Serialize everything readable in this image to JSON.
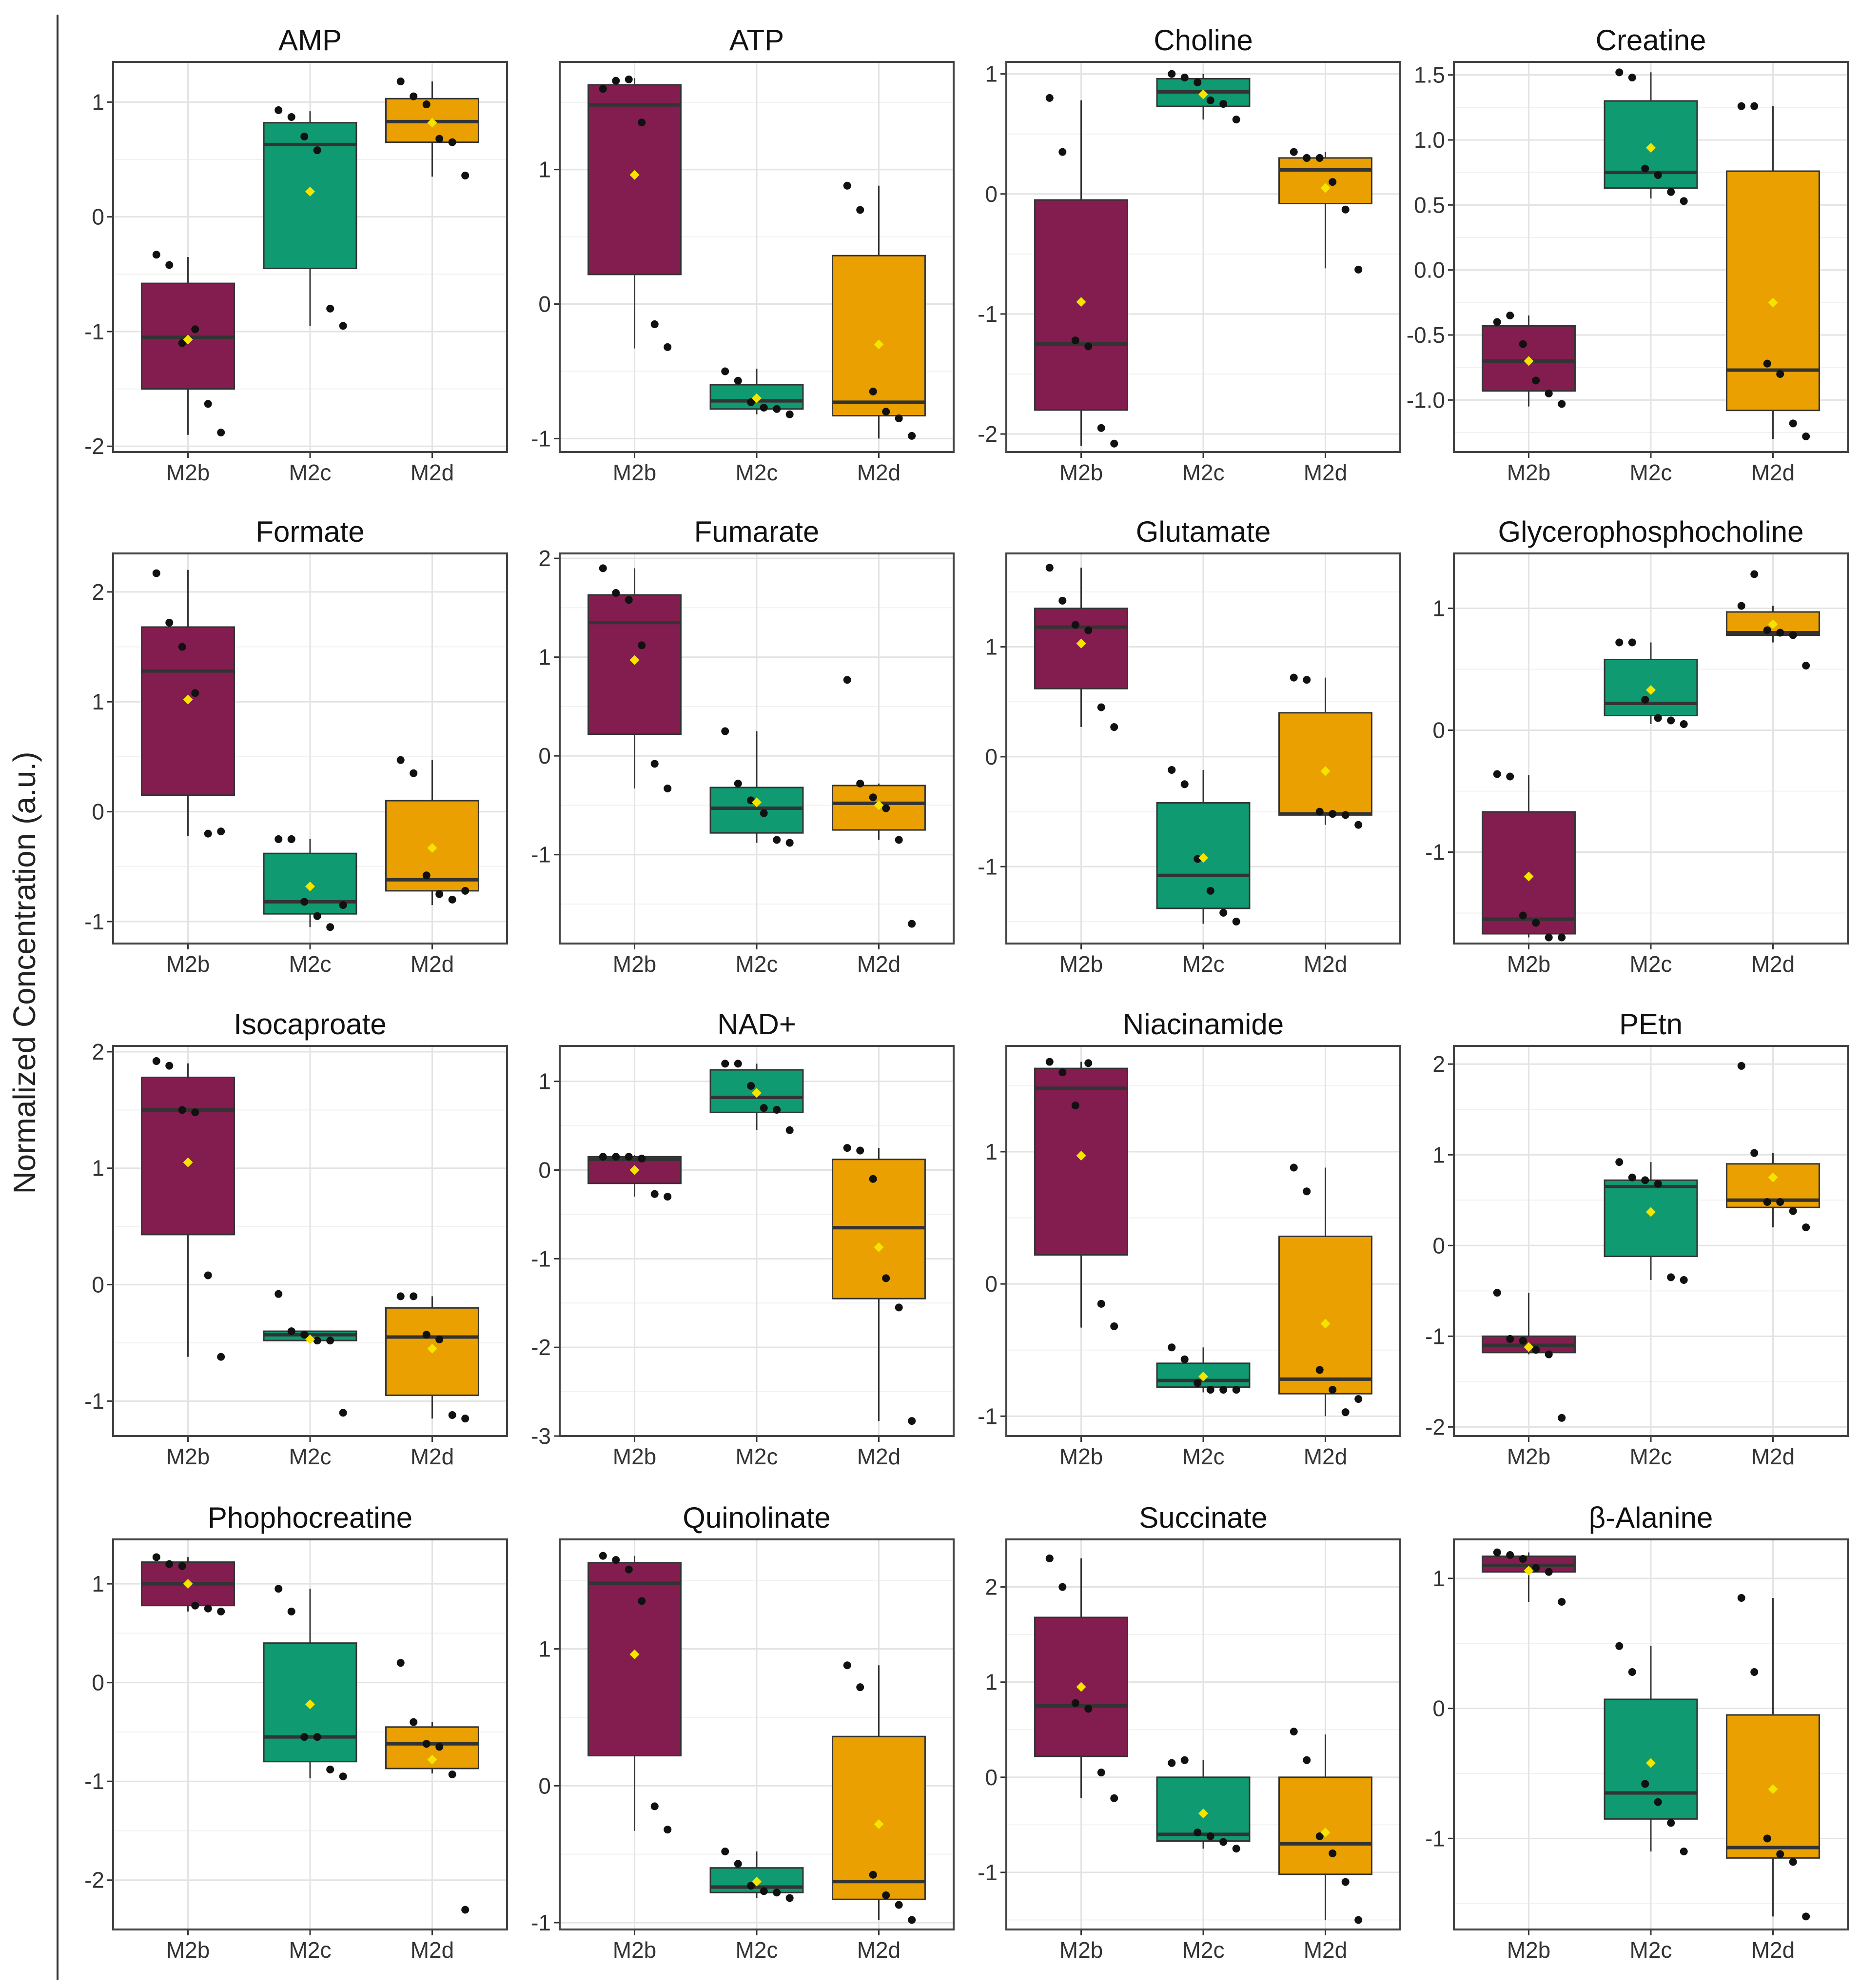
{
  "figure": {
    "ylabel": "Normalized Concentration (a.u.)",
    "colors": {
      "M2b": "#841d4f",
      "M2c": "#0f9a72",
      "M2d": "#e9a000",
      "mean": "#f5e400",
      "point": "#111111",
      "median": "#333333"
    }
  },
  "chart_data": [
    {
      "type": "box",
      "title": "AMP",
      "categories": [
        "M2b",
        "M2c",
        "M2d"
      ],
      "yticks": [
        1,
        0,
        -1,
        -2
      ],
      "ylim": [
        -2.05,
        1.35
      ],
      "boxes": [
        {
          "q1": -1.5,
          "median": -1.05,
          "q3": -0.58,
          "wmin": -1.9,
          "wmax": -0.35,
          "mean": -1.07,
          "points": [
            -0.33,
            -0.42,
            -1.1,
            -0.98,
            -1.63,
            -1.88
          ]
        },
        {
          "q1": -0.45,
          "median": 0.63,
          "q3": 0.82,
          "wmin": -0.95,
          "wmax": 0.92,
          "mean": 0.22,
          "points": [
            0.93,
            0.87,
            0.7,
            0.58,
            -0.8,
            -0.95
          ]
        },
        {
          "q1": 0.65,
          "median": 0.83,
          "q3": 1.03,
          "wmin": 0.35,
          "wmax": 1.18,
          "mean": 0.82,
          "points": [
            1.18,
            1.05,
            0.98,
            0.68,
            0.65,
            0.36
          ]
        }
      ]
    },
    {
      "type": "box",
      "title": "ATP",
      "categories": [
        "M2b",
        "M2c",
        "M2d"
      ],
      "yticks": [
        1,
        0,
        -1
      ],
      "ylim": [
        -1.1,
        1.8
      ],
      "boxes": [
        {
          "q1": 0.22,
          "median": 1.48,
          "q3": 1.63,
          "wmin": -0.33,
          "wmax": 1.68,
          "mean": 0.96,
          "points": [
            1.6,
            1.66,
            1.67,
            1.35,
            -0.15,
            -0.32
          ]
        },
        {
          "q1": -0.78,
          "median": -0.72,
          "q3": -0.6,
          "wmin": -0.82,
          "wmax": -0.48,
          "mean": -0.7,
          "points": [
            -0.5,
            -0.57,
            -0.73,
            -0.77,
            -0.78,
            -0.82
          ]
        },
        {
          "q1": -0.83,
          "median": -0.73,
          "q3": 0.36,
          "wmin": -1.0,
          "wmax": 0.88,
          "mean": -0.3,
          "points": [
            0.88,
            0.7,
            -0.65,
            -0.8,
            -0.85,
            -0.98
          ]
        }
      ]
    },
    {
      "type": "box",
      "title": "Choline",
      "categories": [
        "M2b",
        "M2c",
        "M2d"
      ],
      "yticks": [
        1,
        0,
        -1,
        -2
      ],
      "ylim": [
        -2.15,
        1.1
      ],
      "boxes": [
        {
          "q1": -1.8,
          "median": -1.25,
          "q3": -0.05,
          "wmin": -2.1,
          "wmax": 0.78,
          "mean": -0.9,
          "points": [
            0.8,
            0.35,
            -1.22,
            -1.27,
            -1.95,
            -2.08
          ]
        },
        {
          "q1": 0.73,
          "median": 0.85,
          "q3": 0.96,
          "wmin": 0.62,
          "wmax": 1.0,
          "mean": 0.83,
          "points": [
            1.0,
            0.97,
            0.93,
            0.78,
            0.75,
            0.62
          ]
        },
        {
          "q1": -0.08,
          "median": 0.2,
          "q3": 0.3,
          "wmin": -0.62,
          "wmax": 0.35,
          "mean": 0.05,
          "points": [
            0.35,
            0.3,
            0.3,
            0.1,
            -0.13,
            -0.63
          ]
        }
      ]
    },
    {
      "type": "box",
      "title": "Creatine",
      "categories": [
        "M2b",
        "M2c",
        "M2d"
      ],
      "yticks": [
        1.5,
        1.0,
        0.5,
        0.0,
        -0.5,
        -1.0
      ],
      "ylim": [
        -1.4,
        1.6
      ],
      "boxes": [
        {
          "q1": -0.93,
          "median": -0.7,
          "q3": -0.43,
          "wmin": -1.05,
          "wmax": -0.35,
          "mean": -0.7,
          "points": [
            -0.4,
            -0.35,
            -0.57,
            -0.85,
            -0.95,
            -1.03
          ]
        },
        {
          "q1": 0.63,
          "median": 0.75,
          "q3": 1.3,
          "wmin": 0.55,
          "wmax": 1.52,
          "mean": 0.94,
          "points": [
            1.52,
            1.48,
            0.78,
            0.73,
            0.6,
            0.53
          ]
        },
        {
          "q1": -1.08,
          "median": -0.77,
          "q3": 0.76,
          "wmin": -1.3,
          "wmax": 1.26,
          "mean": -0.25,
          "points": [
            1.26,
            1.26,
            -0.72,
            -0.8,
            -1.18,
            -1.28
          ]
        }
      ]
    },
    {
      "type": "box",
      "title": "Formate",
      "categories": [
        "M2b",
        "M2c",
        "M2d"
      ],
      "yticks": [
        2,
        1,
        0,
        -1
      ],
      "ylim": [
        -1.2,
        2.35
      ],
      "boxes": [
        {
          "q1": 0.15,
          "median": 1.28,
          "q3": 1.68,
          "wmin": -0.22,
          "wmax": 2.2,
          "mean": 1.02,
          "points": [
            2.17,
            1.72,
            1.5,
            1.08,
            -0.2,
            -0.18
          ]
        },
        {
          "q1": -0.93,
          "median": -0.82,
          "q3": -0.38,
          "wmin": -1.05,
          "wmax": -0.25,
          "mean": -0.68,
          "points": [
            -0.25,
            -0.25,
            -0.82,
            -0.95,
            -1.05,
            -0.85
          ]
        },
        {
          "q1": -0.72,
          "median": -0.62,
          "q3": 0.1,
          "wmin": -0.85,
          "wmax": 0.47,
          "mean": -0.33,
          "points": [
            0.47,
            0.35,
            -0.58,
            -0.75,
            -0.8,
            -0.72
          ]
        }
      ]
    },
    {
      "type": "box",
      "title": "Fumarate",
      "categories": [
        "M2b",
        "M2c",
        "M2d"
      ],
      "yticks": [
        2,
        1,
        0,
        -1
      ],
      "ylim": [
        -1.9,
        2.05
      ],
      "boxes": [
        {
          "q1": 0.22,
          "median": 1.35,
          "q3": 1.63,
          "wmin": -0.33,
          "wmax": 1.9,
          "mean": 0.97,
          "points": [
            1.9,
            1.65,
            1.58,
            1.12,
            -0.08,
            -0.33
          ]
        },
        {
          "q1": -0.78,
          "median": -0.53,
          "q3": -0.32,
          "wmin": -0.88,
          "wmax": 0.25,
          "mean": -0.47,
          "points": [
            0.25,
            -0.28,
            -0.45,
            -0.58,
            -0.85,
            -0.88
          ]
        },
        {
          "q1": -0.75,
          "median": -0.48,
          "q3": -0.3,
          "wmin": -0.85,
          "wmax": -0.28,
          "mean": -0.5,
          "points": [
            0.77,
            -0.28,
            -0.42,
            -0.53,
            -0.85,
            -1.7
          ]
        }
      ]
    },
    {
      "type": "box",
      "title": "Glutamate",
      "categories": [
        "M2b",
        "M2c",
        "M2d"
      ],
      "yticks": [
        1,
        0,
        -1
      ],
      "ylim": [
        -1.7,
        1.85
      ],
      "boxes": [
        {
          "q1": 0.62,
          "median": 1.18,
          "q3": 1.35,
          "wmin": 0.27,
          "wmax": 1.72,
          "mean": 1.03,
          "points": [
            1.72,
            1.42,
            1.2,
            1.15,
            0.45,
            0.27
          ]
        },
        {
          "q1": -1.38,
          "median": -1.08,
          "q3": -0.42,
          "wmin": -1.52,
          "wmax": -0.12,
          "mean": -0.92,
          "points": [
            -0.12,
            -0.25,
            -0.93,
            -1.22,
            -1.42,
            -1.5
          ]
        },
        {
          "q1": -0.53,
          "median": -0.52,
          "q3": 0.4,
          "wmin": -0.62,
          "wmax": 0.72,
          "mean": -0.13,
          "points": [
            0.72,
            0.7,
            -0.5,
            -0.52,
            -0.53,
            -0.62
          ]
        }
      ]
    },
    {
      "type": "box",
      "title": "Glycerophosphocholine",
      "categories": [
        "M2b",
        "M2c",
        "M2d"
      ],
      "yticks": [
        1,
        0,
        -1
      ],
      "ylim": [
        -1.75,
        1.45
      ],
      "boxes": [
        {
          "q1": -1.67,
          "median": -1.55,
          "q3": -0.67,
          "wmin": -1.7,
          "wmax": -0.37,
          "mean": -1.2,
          "points": [
            -0.36,
            -0.38,
            -1.52,
            -1.58,
            -1.7,
            -1.7
          ]
        },
        {
          "q1": 0.12,
          "median": 0.22,
          "q3": 0.58,
          "wmin": 0.05,
          "wmax": 0.72,
          "mean": 0.33,
          "points": [
            0.72,
            0.72,
            0.25,
            0.1,
            0.08,
            0.05
          ]
        },
        {
          "q1": 0.78,
          "median": 0.8,
          "q3": 0.97,
          "wmin": 0.72,
          "wmax": 1.02,
          "mean": 0.87,
          "points": [
            1.02,
            1.28,
            0.82,
            0.8,
            0.78,
            0.53
          ]
        }
      ]
    },
    {
      "type": "box",
      "title": "Isocaproate",
      "categories": [
        "M2b",
        "M2c",
        "M2d"
      ],
      "yticks": [
        2,
        1,
        0,
        -1
      ],
      "ylim": [
        -1.3,
        2.05
      ],
      "boxes": [
        {
          "q1": 0.43,
          "median": 1.5,
          "q3": 1.78,
          "wmin": -0.62,
          "wmax": 1.9,
          "mean": 1.05,
          "points": [
            1.92,
            1.88,
            1.5,
            1.48,
            0.08,
            -0.62
          ]
        },
        {
          "q1": -0.48,
          "median": -0.43,
          "q3": -0.4,
          "wmin": -0.48,
          "wmax": -0.4,
          "mean": -0.47,
          "points": [
            -0.08,
            -0.4,
            -0.43,
            -0.48,
            -0.48,
            -1.1
          ]
        },
        {
          "q1": -0.95,
          "median": -0.45,
          "q3": -0.2,
          "wmin": -1.15,
          "wmax": -0.1,
          "mean": -0.55,
          "points": [
            -0.1,
            -0.1,
            -0.43,
            -0.47,
            -1.12,
            -1.15
          ]
        }
      ]
    },
    {
      "type": "box",
      "title": "NAD+",
      "categories": [
        "M2b",
        "M2c",
        "M2d"
      ],
      "yticks": [
        1,
        0,
        -1,
        -2,
        -3
      ],
      "ylim": [
        -3.0,
        1.4
      ],
      "boxes": [
        {
          "q1": -0.15,
          "median": 0.12,
          "q3": 0.15,
          "wmin": -0.3,
          "wmax": 0.17,
          "mean": 0.0,
          "points": [
            0.15,
            0.15,
            0.15,
            0.13,
            -0.27,
            -0.3
          ]
        },
        {
          "q1": 0.65,
          "median": 0.82,
          "q3": 1.13,
          "wmin": 0.45,
          "wmax": 1.2,
          "mean": 0.87,
          "points": [
            1.2,
            1.2,
            0.95,
            0.7,
            0.68,
            0.45
          ]
        },
        {
          "q1": -1.45,
          "median": -0.65,
          "q3": 0.12,
          "wmin": -2.83,
          "wmax": 0.25,
          "mean": -0.87,
          "points": [
            0.25,
            0.22,
            -0.1,
            -1.22,
            -1.55,
            -2.83
          ]
        }
      ]
    },
    {
      "type": "box",
      "title": "Niacinamide",
      "categories": [
        "M2b",
        "M2c",
        "M2d"
      ],
      "yticks": [
        1,
        0,
        -1
      ],
      "ylim": [
        -1.15,
        1.8
      ],
      "boxes": [
        {
          "q1": 0.22,
          "median": 1.48,
          "q3": 1.63,
          "wmin": -0.33,
          "wmax": 1.68,
          "mean": 0.97,
          "points": [
            1.68,
            1.6,
            1.35,
            1.67,
            -0.15,
            -0.32
          ]
        },
        {
          "q1": -0.78,
          "median": -0.73,
          "q3": -0.6,
          "wmin": -0.82,
          "wmax": -0.48,
          "mean": -0.7,
          "points": [
            -0.48,
            -0.57,
            -0.75,
            -0.8,
            -0.8,
            -0.8
          ]
        },
        {
          "q1": -0.83,
          "median": -0.72,
          "q3": 0.36,
          "wmin": -1.0,
          "wmax": 0.88,
          "mean": -0.3,
          "points": [
            0.88,
            0.7,
            -0.65,
            -0.8,
            -0.97,
            -0.87
          ]
        }
      ]
    },
    {
      "type": "box",
      "title": "PEtn",
      "categories": [
        "M2b",
        "M2c",
        "M2d"
      ],
      "yticks": [
        2,
        1,
        0,
        -1,
        -2
      ],
      "ylim": [
        -2.1,
        2.2
      ],
      "boxes": [
        {
          "q1": -1.18,
          "median": -1.1,
          "q3": -1.0,
          "wmin": -1.2,
          "wmax": -0.52,
          "mean": -1.12,
          "points": [
            -0.52,
            -1.03,
            -1.05,
            -1.15,
            -1.2,
            -1.9
          ]
        },
        {
          "q1": -0.12,
          "median": 0.65,
          "q3": 0.72,
          "wmin": -0.38,
          "wmax": 0.92,
          "mean": 0.37,
          "points": [
            0.92,
            0.75,
            0.72,
            0.68,
            -0.35,
            -0.38
          ]
        },
        {
          "q1": 0.42,
          "median": 0.5,
          "q3": 0.9,
          "wmin": 0.2,
          "wmax": 1.02,
          "mean": 0.75,
          "points": [
            1.98,
            1.02,
            0.48,
            0.48,
            0.38,
            0.2
          ]
        }
      ]
    },
    {
      "type": "box",
      "title": "Phophocreatine",
      "categories": [
        "M2b",
        "M2c",
        "M2d"
      ],
      "yticks": [
        1,
        0,
        -1,
        -2
      ],
      "ylim": [
        -2.5,
        1.45
      ],
      "boxes": [
        {
          "q1": 0.78,
          "median": 1.0,
          "q3": 1.22,
          "wmin": 0.72,
          "wmax": 1.27,
          "mean": 1.0,
          "points": [
            1.27,
            1.2,
            1.18,
            0.78,
            0.75,
            0.72
          ]
        },
        {
          "q1": -0.8,
          "median": -0.55,
          "q3": 0.4,
          "wmin": -0.97,
          "wmax": 0.95,
          "mean": -0.22,
          "points": [
            0.95,
            0.72,
            -0.55,
            -0.55,
            -0.88,
            -0.95
          ]
        },
        {
          "q1": -0.87,
          "median": -0.62,
          "q3": -0.45,
          "wmin": -0.92,
          "wmax": -0.4,
          "mean": -0.78,
          "points": [
            0.2,
            -0.4,
            -0.62,
            -0.65,
            -0.93,
            -2.3
          ]
        }
      ]
    },
    {
      "type": "box",
      "title": "Quinolinate",
      "categories": [
        "M2b",
        "M2c",
        "M2d"
      ],
      "yticks": [
        1,
        0,
        -1
      ],
      "ylim": [
        -1.05,
        1.8
      ],
      "boxes": [
        {
          "q1": 0.22,
          "median": 1.48,
          "q3": 1.63,
          "wmin": -0.33,
          "wmax": 1.68,
          "mean": 0.96,
          "points": [
            1.68,
            1.65,
            1.58,
            1.35,
            -0.15,
            -0.32
          ]
        },
        {
          "q1": -0.78,
          "median": -0.74,
          "q3": -0.6,
          "wmin": -0.82,
          "wmax": -0.48,
          "mean": -0.7,
          "points": [
            -0.48,
            -0.57,
            -0.73,
            -0.77,
            -0.78,
            -0.82
          ]
        },
        {
          "q1": -0.83,
          "median": -0.7,
          "q3": 0.36,
          "wmin": -0.98,
          "wmax": 0.88,
          "mean": -0.28,
          "points": [
            0.88,
            0.72,
            -0.65,
            -0.8,
            -0.87,
            -0.98
          ]
        }
      ]
    },
    {
      "type": "box",
      "title": "Succinate",
      "categories": [
        "M2b",
        "M2c",
        "M2d"
      ],
      "yticks": [
        2,
        1,
        0,
        -1
      ],
      "ylim": [
        -1.6,
        2.5
      ],
      "boxes": [
        {
          "q1": 0.22,
          "median": 0.75,
          "q3": 1.68,
          "wmin": -0.22,
          "wmax": 2.3,
          "mean": 0.95,
          "points": [
            2.3,
            2.0,
            0.78,
            0.72,
            0.05,
            -0.22
          ]
        },
        {
          "q1": -0.67,
          "median": -0.6,
          "q3": 0.0,
          "wmin": -0.75,
          "wmax": 0.18,
          "mean": -0.38,
          "points": [
            0.15,
            0.18,
            -0.58,
            -0.62,
            -0.68,
            -0.75
          ]
        },
        {
          "q1": -1.02,
          "median": -0.7,
          "q3": 0.0,
          "wmin": -1.5,
          "wmax": 0.45,
          "mean": -0.58,
          "points": [
            0.48,
            0.18,
            -0.62,
            -0.8,
            -1.1,
            -1.5
          ]
        }
      ]
    },
    {
      "type": "box",
      "title": "β-Alanine",
      "categories": [
        "M2b",
        "M2c",
        "M2d"
      ],
      "yticks": [
        1,
        0,
        -1
      ],
      "ylim": [
        -1.7,
        1.3
      ],
      "boxes": [
        {
          "q1": 1.05,
          "median": 1.1,
          "q3": 1.17,
          "wmin": 0.82,
          "wmax": 1.2,
          "mean": 1.06,
          "points": [
            1.2,
            1.18,
            1.15,
            1.08,
            1.05,
            0.82
          ]
        },
        {
          "q1": -0.85,
          "median": -0.65,
          "q3": 0.07,
          "wmin": -1.1,
          "wmax": 0.48,
          "mean": -0.42,
          "points": [
            0.48,
            0.28,
            -0.58,
            -0.72,
            -0.88,
            -1.1
          ]
        },
        {
          "q1": -1.15,
          "median": -1.07,
          "q3": -0.05,
          "wmin": -1.6,
          "wmax": 0.85,
          "mean": -0.62,
          "points": [
            0.85,
            0.28,
            -1.0,
            -1.12,
            -1.18,
            -1.6
          ]
        }
      ]
    }
  ]
}
